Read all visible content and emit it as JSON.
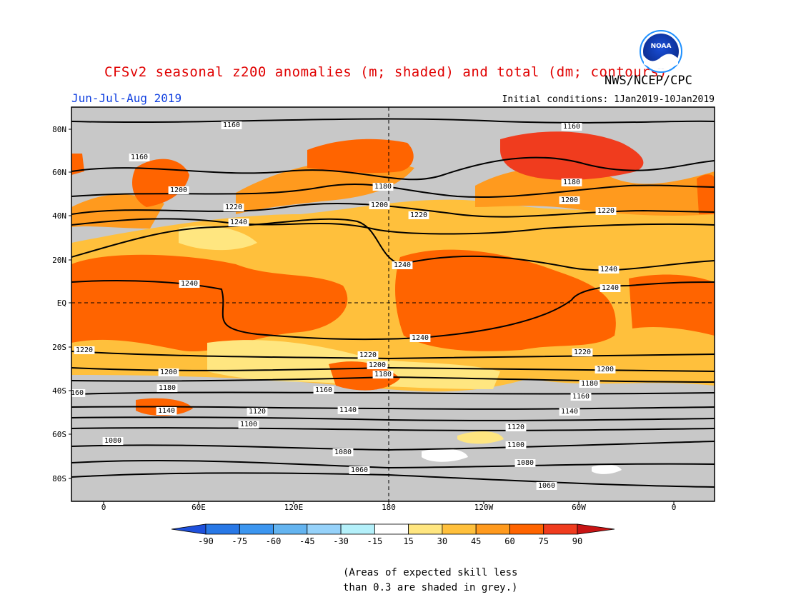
{
  "header": {
    "title": "CFSv2 seasonal z200 anomalies (m; shaded) and total (dm; contours)",
    "agency": "NWS/NCEP/CPC",
    "period": "Jun-Jul-Aug 2019",
    "initial_conditions": "Initial conditions: 1Jan2019-10Jan2019"
  },
  "logo": {
    "text": "NOAA"
  },
  "map": {
    "lat_labels": [
      "80N",
      "60N",
      "40N",
      "20N",
      "EQ",
      "20S",
      "40S",
      "60S",
      "80S"
    ],
    "lon_labels": [
      "0",
      "60E",
      "120E",
      "180",
      "120W",
      "60W",
      "0"
    ],
    "colors": {
      "grey": "#c8c8c8",
      "yellow_15_30": "#ffe680",
      "lightorange_30_45": "#ffc03c",
      "orange_45_60": "#ff9a1e",
      "darkorange_60_75": "#ff6400",
      "red_75_90": "#f03c1e",
      "white": "#ffffff"
    },
    "contour_labels": [
      {
        "text": "1160"
      },
      {
        "text": "1160"
      },
      {
        "text": "1160"
      },
      {
        "text": "1200"
      },
      {
        "text": "1220"
      },
      {
        "text": "1240"
      },
      {
        "text": "1180"
      },
      {
        "text": "1200"
      },
      {
        "text": "1220"
      },
      {
        "text": "1180"
      },
      {
        "text": "1200"
      },
      {
        "text": "1220"
      },
      {
        "text": "1240"
      },
      {
        "text": "1240"
      },
      {
        "text": "1240"
      },
      {
        "text": "1240"
      },
      {
        "text": "1240"
      },
      {
        "text": "1220"
      },
      {
        "text": "1220"
      },
      {
        "text": "1220"
      },
      {
        "text": "1200"
      },
      {
        "text": "1200"
      },
      {
        "text": "1200"
      },
      {
        "text": "1180"
      },
      {
        "text": "1180"
      },
      {
        "text": "1180"
      },
      {
        "text": "160"
      },
      {
        "text": "1160"
      },
      {
        "text": "1160"
      },
      {
        "text": "1140"
      },
      {
        "text": "1140"
      },
      {
        "text": "1140"
      },
      {
        "text": "1120"
      },
      {
        "text": "1120"
      },
      {
        "text": "1100"
      },
      {
        "text": "1100"
      },
      {
        "text": "1080"
      },
      {
        "text": "1080"
      },
      {
        "text": "1080"
      },
      {
        "text": "1060"
      },
      {
        "text": "1060"
      }
    ]
  },
  "colorbar": {
    "ticks": [
      "-90",
      "-75",
      "-60",
      "-45",
      "-30",
      "-15",
      "15",
      "30",
      "45",
      "60",
      "75",
      "90"
    ],
    "colors": [
      "#1e50dc",
      "#2878e6",
      "#3c96f0",
      "#64b4f0",
      "#96d2fa",
      "#b4f0fa",
      "#ffffff",
      "#ffe680",
      "#ffc03c",
      "#ff9a1e",
      "#ff6400",
      "#f03c1e",
      "#c81414"
    ]
  },
  "note": {
    "line1": "(Areas of expected skill less",
    "line2": "than 0.3 are shaded in grey.)"
  }
}
